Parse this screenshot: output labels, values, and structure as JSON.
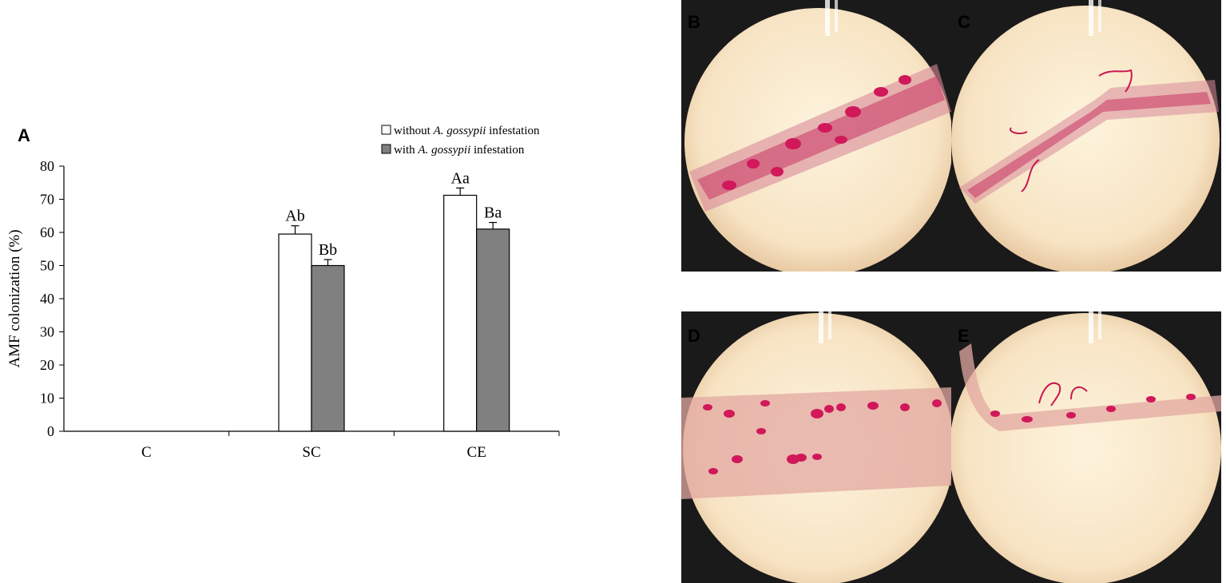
{
  "panel_labels": {
    "A": "A",
    "B": "B",
    "C": "C",
    "D": "D",
    "E": "E"
  },
  "chart_data": {
    "type": "bar",
    "title": "",
    "xlabel": "",
    "ylabel": "AMF colonization (%)",
    "ylim": [
      0,
      80
    ],
    "yticks": [
      0,
      10,
      20,
      30,
      40,
      50,
      60,
      70,
      80
    ],
    "categories": [
      "C",
      "SC",
      "CE"
    ],
    "series": [
      {
        "name": "without A. gossypii infestation",
        "legend_prefix": "without ",
        "legend_italic": "A. gossypii",
        "legend_suffix": " infestation",
        "color": "#ffffff",
        "values": [
          0,
          59.5,
          71.2
        ],
        "errors": [
          0,
          2.5,
          2.2
        ],
        "labels": [
          "",
          "Ab",
          "Aa"
        ]
      },
      {
        "name": "with A. gossypii infestation",
        "legend_prefix": "with ",
        "legend_italic": "A. gossypii",
        "legend_suffix": " infestation",
        "color": "#808080",
        "values": [
          0,
          50,
          61
        ],
        "errors": [
          0,
          1.8,
          2.0
        ],
        "labels": [
          "",
          "Bb",
          "Ba"
        ]
      }
    ],
    "grid": false,
    "legend_position": "top-right"
  }
}
